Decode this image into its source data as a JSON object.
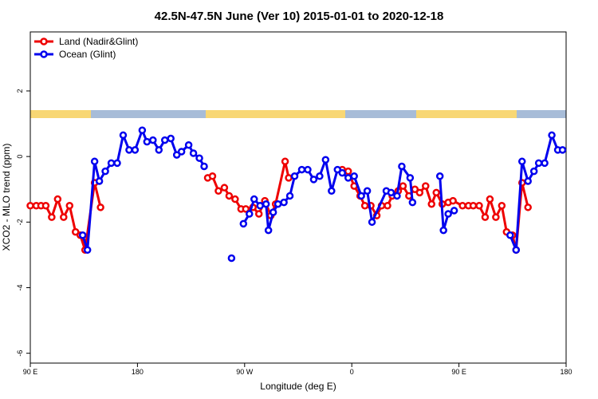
{
  "chart_data": {
    "type": "line",
    "title": "42.5N-47.5N June (Ver 10)   2015-01-01 to 2020-12-18",
    "xlabel": "Longitude (deg E)",
    "ylabel": "XCO2 - MLO trend (ppm)",
    "xlim": [
      90,
      540
    ],
    "xticks": [
      {
        "value": 90,
        "label": "90 E"
      },
      {
        "value": 180,
        "label": "180"
      },
      {
        "value": 270,
        "label": "90 W"
      },
      {
        "value": 360,
        "label": "0"
      },
      {
        "value": 450,
        "label": "90 E"
      },
      {
        "value": 540,
        "label": "180"
      }
    ],
    "ylim": [
      -6.3,
      3.8
    ],
    "yticks": [
      -6,
      -4,
      -2,
      0,
      2
    ],
    "legend": "top-left",
    "series": [
      {
        "name": "Land (Nadir&Glint)",
        "color": "#ee0000",
        "x": [
          90,
          95,
          99,
          103,
          108,
          113,
          118,
          123,
          128,
          132,
          136,
          144,
          149,
          null,
          239,
          243,
          248,
          253,
          257,
          262,
          267,
          271,
          277,
          282,
          287,
          292,
          296,
          304,
          307,
          null,
          352,
          357,
          362,
          367,
          371,
          376,
          381,
          385,
          390,
          394,
          399,
          403,
          408,
          413,
          417,
          422,
          427,
          431,
          436,
          441,
          445,
          453,
          458,
          462,
          467,
          472,
          476,
          481,
          486,
          490,
          495,
          498,
          503,
          508
        ],
        "values": [
          -1.5,
          -1.5,
          -1.5,
          -1.5,
          -1.85,
          -1.3,
          -1.85,
          -1.5,
          -2.3,
          -2.4,
          -2.85,
          -0.8,
          -1.55,
          null,
          -0.65,
          -0.6,
          -1.05,
          -0.95,
          -1.2,
          -1.3,
          -1.6,
          -1.6,
          -1.55,
          -1.75,
          -1.35,
          -1.8,
          -1.45,
          -0.15,
          -0.65,
          null,
          -0.4,
          -0.45,
          -0.9,
          -1.2,
          -1.5,
          -1.5,
          -1.8,
          -1.5,
          -1.5,
          -1.2,
          -1.05,
          -0.9,
          -1.2,
          -1.0,
          -1.1,
          -0.9,
          -1.45,
          -1.1,
          -1.45,
          -1.4,
          -1.35,
          -1.5,
          -1.5,
          -1.5,
          -1.5,
          -1.85,
          -1.3,
          -1.85,
          -1.5,
          -2.3,
          -2.4,
          -2.85,
          -0.8,
          -1.55
        ]
      },
      {
        "name": "Ocean (Glint)",
        "color": "#0000ee",
        "x": [
          134,
          138,
          144,
          148,
          153,
          158,
          163,
          168,
          173,
          178,
          184,
          188,
          193,
          198,
          203,
          208,
          213,
          217,
          223,
          227,
          232,
          236,
          null,
          259,
          null,
          269,
          274,
          278,
          283,
          288,
          290,
          294,
          298,
          303,
          308,
          312,
          318,
          323,
          328,
          333,
          338,
          343,
          348,
          352,
          357,
          362,
          368,
          373,
          377,
          389,
          393,
          398,
          402,
          409,
          411,
          null,
          434,
          437,
          441,
          446,
          null,
          493,
          498,
          503,
          508,
          513,
          517,
          522,
          528,
          533,
          537
        ],
        "values": [
          -2.4,
          -2.85,
          -0.15,
          -0.75,
          -0.45,
          -0.2,
          -0.2,
          0.65,
          0.2,
          0.2,
          0.8,
          0.45,
          0.5,
          0.2,
          0.5,
          0.55,
          0.05,
          0.15,
          0.35,
          0.1,
          -0.05,
          -0.3,
          null,
          -3.1,
          null,
          -2.05,
          -1.75,
          -1.3,
          -1.5,
          -1.45,
          -2.25,
          -1.7,
          -1.45,
          -1.4,
          -1.2,
          -0.6,
          -0.4,
          -0.4,
          -0.7,
          -0.6,
          -0.1,
          -1.05,
          -0.4,
          -0.5,
          -0.65,
          -0.6,
          -1.2,
          -1.05,
          -2.0,
          -1.05,
          -1.1,
          -1.2,
          -0.3,
          -0.65,
          -1.4,
          null,
          -0.6,
          -2.25,
          -1.75,
          -1.65,
          null,
          -2.4,
          -2.85,
          -0.15,
          -0.75,
          -0.45,
          -0.2,
          -0.2,
          0.65,
          0.2,
          0.2
        ]
      }
    ]
  }
}
